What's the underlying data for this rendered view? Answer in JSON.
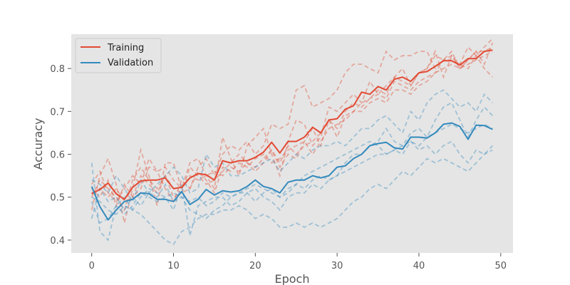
{
  "chart_data": {
    "type": "line",
    "title": "",
    "xlabel": "Epoch",
    "ylabel": "Accuracy",
    "xlim": [
      -2.5,
      51.5
    ],
    "ylim": [
      0.37,
      0.88
    ],
    "xticks": [
      0,
      10,
      20,
      30,
      40,
      50
    ],
    "yticks": [
      0.4,
      0.5,
      0.6,
      0.7,
      0.8
    ],
    "xtick_labels": [
      "0",
      "10",
      "20",
      "30",
      "40",
      "50"
    ],
    "ytick_labels": [
      "0.4",
      "0.5",
      "0.6",
      "0.7",
      "0.8"
    ],
    "grid": false,
    "legend_position": "top-left",
    "background": "#e5e5e5",
    "x": [
      0,
      1,
      2,
      3,
      4,
      5,
      6,
      7,
      8,
      9,
      10,
      11,
      12,
      13,
      14,
      15,
      16,
      17,
      18,
      19,
      20,
      21,
      22,
      23,
      24,
      25,
      26,
      27,
      28,
      29,
      30,
      31,
      32,
      33,
      34,
      35,
      36,
      37,
      38,
      39,
      40,
      41,
      42,
      43,
      44,
      45,
      46,
      47,
      48,
      49
    ],
    "series": [
      {
        "name": "Training",
        "color": "#e24a33",
        "style": "solid",
        "values": [
          0.508,
          0.518,
          0.533,
          0.508,
          0.495,
          0.523,
          0.538,
          0.54,
          0.54,
          0.545,
          0.52,
          0.523,
          0.545,
          0.555,
          0.552,
          0.54,
          0.585,
          0.58,
          0.585,
          0.585,
          0.593,
          0.605,
          0.628,
          0.603,
          0.63,
          0.63,
          0.64,
          0.663,
          0.65,
          0.68,
          0.683,
          0.705,
          0.713,
          0.745,
          0.74,
          0.758,
          0.75,
          0.775,
          0.78,
          0.77,
          0.79,
          0.793,
          0.805,
          0.818,
          0.818,
          0.808,
          0.823,
          0.823,
          0.84,
          0.843
        ]
      },
      {
        "name": "Validation",
        "color": "#348abd",
        "style": "solid",
        "values": [
          0.525,
          0.478,
          0.447,
          0.47,
          0.49,
          0.495,
          0.51,
          0.508,
          0.495,
          0.495,
          0.49,
          0.513,
          0.483,
          0.495,
          0.518,
          0.505,
          0.515,
          0.512,
          0.515,
          0.525,
          0.54,
          0.525,
          0.52,
          0.51,
          0.535,
          0.54,
          0.54,
          0.55,
          0.545,
          0.55,
          0.57,
          0.573,
          0.59,
          0.6,
          0.62,
          0.625,
          0.628,
          0.615,
          0.612,
          0.64,
          0.64,
          0.638,
          0.65,
          0.67,
          0.673,
          0.665,
          0.635,
          0.668,
          0.667,
          0.658
        ]
      }
    ],
    "folds": [
      {
        "group": "train",
        "color": "#e24a33",
        "values": [
          0.47,
          0.55,
          0.59,
          0.53,
          0.44,
          0.52,
          0.61,
          0.55,
          0.48,
          0.58,
          0.58,
          0.52,
          0.58,
          0.59,
          0.55,
          0.52,
          0.64,
          0.59,
          0.55,
          0.62,
          0.64,
          0.66,
          0.6,
          0.55,
          0.63,
          0.68,
          0.67,
          0.62,
          0.64,
          0.71,
          0.7,
          0.72,
          0.74,
          0.72,
          0.77,
          0.74,
          0.76,
          0.78,
          0.8,
          0.76,
          0.79,
          0.8,
          0.84,
          0.78,
          0.83,
          0.8,
          0.82,
          0.84,
          0.81,
          0.86
        ]
      },
      {
        "group": "train",
        "color": "#e24a33",
        "values": [
          0.52,
          0.5,
          0.54,
          0.48,
          0.53,
          0.5,
          0.52,
          0.57,
          0.56,
          0.52,
          0.49,
          0.54,
          0.52,
          0.57,
          0.59,
          0.55,
          0.6,
          0.62,
          0.61,
          0.63,
          0.6,
          0.62,
          0.67,
          0.66,
          0.67,
          0.75,
          0.76,
          0.71,
          0.72,
          0.73,
          0.75,
          0.79,
          0.81,
          0.81,
          0.8,
          0.79,
          0.84,
          0.82,
          0.83,
          0.83,
          0.84,
          0.84,
          0.8,
          0.82,
          0.83,
          0.81,
          0.85,
          0.83,
          0.85,
          0.87
        ]
      },
      {
        "group": "train",
        "color": "#e24a33",
        "values": [
          0.5,
          0.54,
          0.52,
          0.5,
          0.47,
          0.54,
          0.57,
          0.54,
          0.52,
          0.55,
          0.5,
          0.51,
          0.57,
          0.55,
          0.53,
          0.54,
          0.56,
          0.58,
          0.6,
          0.58,
          0.56,
          0.58,
          0.61,
          0.57,
          0.6,
          0.59,
          0.63,
          0.66,
          0.62,
          0.68,
          0.64,
          0.69,
          0.7,
          0.72,
          0.73,
          0.74,
          0.73,
          0.77,
          0.76,
          0.75,
          0.77,
          0.78,
          0.79,
          0.82,
          0.82,
          0.81,
          0.8,
          0.83,
          0.8,
          0.78
        ]
      },
      {
        "group": "train",
        "color": "#e24a33",
        "values": [
          0.53,
          0.56,
          0.51,
          0.49,
          0.52,
          0.55,
          0.53,
          0.59,
          0.56,
          0.57,
          0.54,
          0.52,
          0.55,
          0.54,
          0.55,
          0.56,
          0.55,
          0.57,
          0.56,
          0.58,
          0.57,
          0.59,
          0.61,
          0.58,
          0.62,
          0.6,
          0.62,
          0.63,
          0.65,
          0.68,
          0.66,
          0.7,
          0.72,
          0.71,
          0.73,
          0.75,
          0.74,
          0.78,
          0.77,
          0.76,
          0.79,
          0.8,
          0.83,
          0.82,
          0.84,
          0.8,
          0.82,
          0.84,
          0.84,
          0.85
        ]
      },
      {
        "group": "train",
        "color": "#e24a33",
        "values": [
          0.51,
          0.52,
          0.5,
          0.52,
          0.49,
          0.5,
          0.55,
          0.53,
          0.51,
          0.55,
          0.52,
          0.51,
          0.52,
          0.56,
          0.54,
          0.51,
          0.57,
          0.56,
          0.58,
          0.57,
          0.59,
          0.6,
          0.58,
          0.59,
          0.61,
          0.62,
          0.63,
          0.6,
          0.63,
          0.66,
          0.67,
          0.68,
          0.7,
          0.7,
          0.72,
          0.73,
          0.72,
          0.75,
          0.75,
          0.74,
          0.76,
          0.77,
          0.79,
          0.8,
          0.81,
          0.8,
          0.81,
          0.82,
          0.83,
          0.84
        ]
      },
      {
        "group": "val",
        "color": "#348abd",
        "values": [
          0.58,
          0.42,
          0.4,
          0.48,
          0.46,
          0.48,
          0.51,
          0.5,
          0.49,
          0.5,
          0.47,
          0.53,
          0.41,
          0.48,
          0.49,
          0.5,
          0.5,
          0.48,
          0.49,
          0.51,
          0.52,
          0.5,
          0.49,
          0.47,
          0.5,
          0.51,
          0.51,
          0.53,
          0.52,
          0.54,
          0.55,
          0.58,
          0.6,
          0.6,
          0.62,
          0.63,
          0.66,
          0.63,
          0.62,
          0.65,
          0.66,
          0.64,
          0.68,
          0.71,
          0.72,
          0.68,
          0.64,
          0.68,
          0.71,
          0.69
        ]
      },
      {
        "group": "val",
        "color": "#348abd",
        "values": [
          0.49,
          0.44,
          0.45,
          0.48,
          0.5,
          0.47,
          0.46,
          0.44,
          0.42,
          0.4,
          0.39,
          0.42,
          0.43,
          0.45,
          0.46,
          0.46,
          0.47,
          0.47,
          0.48,
          0.47,
          0.45,
          0.46,
          0.45,
          0.43,
          0.43,
          0.44,
          0.43,
          0.44,
          0.43,
          0.44,
          0.45,
          0.47,
          0.49,
          0.5,
          0.52,
          0.53,
          0.52,
          0.54,
          0.56,
          0.55,
          0.57,
          0.59,
          0.58,
          0.59,
          0.58,
          0.57,
          0.56,
          0.58,
          0.6,
          0.61
        ]
      },
      {
        "group": "val",
        "color": "#348abd",
        "values": [
          0.54,
          0.53,
          0.51,
          0.55,
          0.52,
          0.49,
          0.54,
          0.51,
          0.53,
          0.55,
          0.57,
          0.55,
          0.51,
          0.52,
          0.6,
          0.57,
          0.58,
          0.55,
          0.55,
          0.56,
          0.57,
          0.58,
          0.59,
          0.56,
          0.58,
          0.6,
          0.59,
          0.61,
          0.62,
          0.62,
          0.63,
          0.62,
          0.64,
          0.66,
          0.66,
          0.68,
          0.69,
          0.67,
          0.65,
          0.7,
          0.68,
          0.72,
          0.74,
          0.75,
          0.73,
          0.71,
          0.72,
          0.7,
          0.74,
          0.72
        ]
      },
      {
        "group": "val",
        "color": "#348abd",
        "values": [
          0.45,
          0.52,
          0.49,
          0.5,
          0.47,
          0.5,
          0.48,
          0.51,
          0.5,
          0.53,
          0.49,
          0.5,
          0.47,
          0.46,
          0.45,
          0.47,
          0.48,
          0.5,
          0.51,
          0.51,
          0.49,
          0.51,
          0.52,
          0.5,
          0.52,
          0.53,
          0.55,
          0.56,
          0.57,
          0.58,
          0.59,
          0.6,
          0.61,
          0.62,
          0.63,
          0.62,
          0.6,
          0.61,
          0.6,
          0.63,
          0.61,
          0.62,
          0.6,
          0.62,
          0.63,
          0.6,
          0.58,
          0.61,
          0.6,
          0.62
        ]
      },
      {
        "group": "val",
        "color": "#348abd",
        "values": [
          0.5,
          0.49,
          0.47,
          0.46,
          0.48,
          0.47,
          0.5,
          0.52,
          0.51,
          0.5,
          0.51,
          0.5,
          0.49,
          0.5,
          0.48,
          0.49,
          0.51,
          0.5,
          0.51,
          0.52,
          0.53,
          0.52,
          0.51,
          0.5,
          0.51,
          0.53,
          0.52,
          0.54,
          0.55,
          0.54,
          0.55,
          0.56,
          0.57,
          0.58,
          0.59,
          0.6,
          0.6,
          0.61,
          0.62,
          0.63,
          0.62,
          0.64,
          0.65,
          0.66,
          0.67,
          0.66,
          0.65,
          0.66,
          0.67,
          0.66
        ]
      }
    ]
  }
}
